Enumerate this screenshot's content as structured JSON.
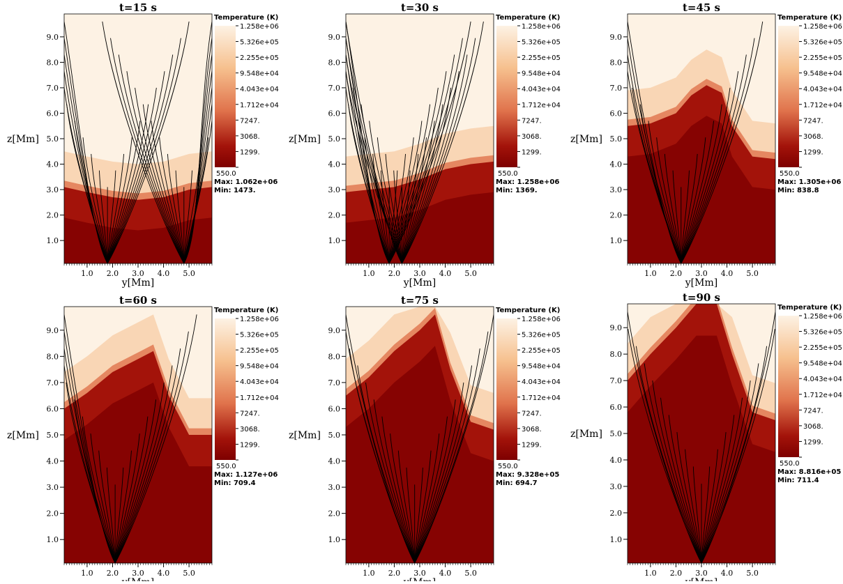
{
  "figure": {
    "colorbar_title": "Temperature (K)",
    "max_label": "Max:",
    "min_label": "Min:",
    "x_axis_label": "y[Mm]",
    "y_axis_label": "z[Mm]",
    "colorbar_ticks": [
      "1.258e+06",
      "5.326e+05",
      "2.255e+05",
      "9.548e+04",
      "4.043e+04",
      "1.712e+04",
      "7247.",
      "3068.",
      "1299.",
      "550.0"
    ],
    "colors": {
      "hot": "#fdf2e4",
      "warm": "#f6c08e",
      "mid": "#e0734c",
      "cool": "#a3130a",
      "cold": "#7e0000",
      "fieldline": "#000000"
    }
  },
  "chart_data": [
    {
      "type": "heatmap",
      "title": "t=15 s",
      "xlabel": "y[Mm]",
      "ylabel": "z[Mm]",
      "xlim": [
        0.1,
        5.9
      ],
      "ylim": [
        0.1,
        9.9
      ],
      "x_ticks": [
        "1.0",
        "2.0",
        "3.0",
        "4.0",
        "5.0"
      ],
      "y_ticks": [
        "1.0",
        "2.0",
        "3.0",
        "4.0",
        "5.0",
        "6.0",
        "7.0",
        "8.0",
        "9.0"
      ],
      "colorbar": {
        "label": "Temperature (K)",
        "scale": "log",
        "range": [
          550.0,
          1258000
        ],
        "max": "1.062e+06",
        "min": "1473."
      },
      "transition_region_height": [
        [
          0.1,
          3.1
        ],
        [
          1.0,
          2.9
        ],
        [
          2.0,
          2.7
        ],
        [
          3.0,
          2.6
        ],
        [
          4.0,
          2.7
        ],
        [
          5.0,
          3.0
        ],
        [
          5.9,
          3.1
        ]
      ],
      "field_line_footpoints_y": [
        1.8,
        4.8
      ]
    },
    {
      "type": "heatmap",
      "title": "t=30 s",
      "xlabel": "y[Mm]",
      "ylabel": "z[Mm]",
      "xlim": [
        0.1,
        5.9
      ],
      "ylim": [
        0.1,
        9.9
      ],
      "x_ticks": [
        "1.0",
        "2.0",
        "3.0",
        "4.0",
        "5.0"
      ],
      "y_ticks": [
        "1.0",
        "2.0",
        "3.0",
        "4.0",
        "5.0",
        "6.0",
        "7.0",
        "8.0",
        "9.0"
      ],
      "colorbar": {
        "label": "Temperature (K)",
        "scale": "log",
        "range": [
          550.0,
          1258000
        ],
        "max": "1.258e+06",
        "min": "1369."
      },
      "transition_region_height": [
        [
          0.1,
          2.9
        ],
        [
          1.0,
          3.0
        ],
        [
          2.0,
          3.1
        ],
        [
          3.0,
          3.4
        ],
        [
          4.0,
          3.8
        ],
        [
          5.0,
          4.0
        ],
        [
          5.9,
          4.1
        ]
      ],
      "field_line_footpoints_y": [
        1.8,
        2.3
      ]
    },
    {
      "type": "heatmap",
      "title": "t=45 s",
      "xlabel": "y[Mm]",
      "ylabel": "z[Mm]",
      "xlim": [
        0.1,
        5.9
      ],
      "ylim": [
        0.1,
        9.9
      ],
      "x_ticks": [
        "1.0",
        "2.0",
        "3.0",
        "4.0",
        "5.0"
      ],
      "y_ticks": [
        "1.0",
        "2.0",
        "3.0",
        "4.0",
        "5.0",
        "6.0",
        "7.0",
        "8.0",
        "9.0"
      ],
      "colorbar": {
        "label": "Temperature (K)",
        "scale": "log",
        "range": [
          550.0,
          1258000
        ],
        "max": "1.305e+06",
        "min": "838.8"
      },
      "transition_region_height": [
        [
          0.1,
          5.5
        ],
        [
          1.0,
          5.6
        ],
        [
          2.0,
          6.0
        ],
        [
          2.6,
          6.7
        ],
        [
          3.2,
          7.1
        ],
        [
          3.8,
          6.8
        ],
        [
          4.2,
          5.5
        ],
        [
          5.0,
          4.3
        ],
        [
          5.9,
          4.2
        ]
      ],
      "field_line_footpoints_y": [
        2.2
      ]
    },
    {
      "type": "heatmap",
      "title": "t=60 s",
      "xlabel": "y[Mm]",
      "ylabel": "z[Mm]",
      "xlim": [
        0.1,
        5.9
      ],
      "ylim": [
        0.1,
        9.9
      ],
      "x_ticks": [
        "1.0",
        "2.0",
        "3.0",
        "4.0",
        "5.0"
      ],
      "y_ticks": [
        "1.0",
        "2.0",
        "3.0",
        "4.0",
        "5.0",
        "6.0",
        "7.0",
        "8.0",
        "9.0"
      ],
      "colorbar": {
        "label": "Temperature (K)",
        "scale": "log",
        "range": [
          550.0,
          1258000
        ],
        "max": "1.127e+06",
        "min": "709.4"
      },
      "transition_region_height": [
        [
          0.1,
          6.0
        ],
        [
          1.0,
          6.6
        ],
        [
          2.0,
          7.4
        ],
        [
          3.0,
          7.9
        ],
        [
          3.6,
          8.2
        ],
        [
          4.2,
          6.5
        ],
        [
          5.0,
          5.0
        ],
        [
          5.9,
          5.0
        ]
      ],
      "field_line_footpoints_y": [
        2.1
      ]
    },
    {
      "type": "heatmap",
      "title": "t=75 s",
      "xlabel": "y[Mm]",
      "ylabel": "z[Mm]",
      "xlim": [
        0.1,
        5.9
      ],
      "ylim": [
        0.1,
        9.9
      ],
      "x_ticks": [
        "1.0",
        "2.0",
        "3.0",
        "4.0",
        "5.0"
      ],
      "y_ticks": [
        "1.0",
        "2.0",
        "3.0",
        "4.0",
        "5.0",
        "6.0",
        "7.0",
        "8.0",
        "9.0"
      ],
      "colorbar": {
        "label": "Temperature (K)",
        "scale": "log",
        "range": [
          550.0,
          1258000
        ],
        "max": "9.328e+05",
        "min": "694.7"
      },
      "transition_region_height": [
        [
          0.1,
          6.5
        ],
        [
          1.0,
          7.2
        ],
        [
          2.0,
          8.2
        ],
        [
          3.0,
          9.0
        ],
        [
          3.6,
          9.6
        ],
        [
          4.2,
          7.5
        ],
        [
          5.0,
          5.5
        ],
        [
          5.9,
          5.2
        ]
      ],
      "field_line_footpoints_y": [
        2.8
      ]
    },
    {
      "type": "heatmap",
      "title": "t=90 s",
      "xlabel": "y[Mm]",
      "ylabel": "z[Mm]",
      "xlim": [
        0.1,
        5.9
      ],
      "ylim": [
        0.1,
        9.9
      ],
      "x_ticks": [
        "1.0",
        "2.0",
        "3.0",
        "4.0",
        "5.0"
      ],
      "y_ticks": [
        "1.0",
        "2.0",
        "3.0",
        "4.0",
        "5.0",
        "6.0",
        "7.0",
        "8.0",
        "9.0"
      ],
      "colorbar": {
        "label": "Temperature (K)",
        "scale": "log",
        "range": [
          550.0,
          1258000
        ],
        "max": "8.816e+05",
        "min": "711.4"
      },
      "transition_region_height": [
        [
          0.1,
          7.0
        ],
        [
          1.0,
          8.0
        ],
        [
          2.0,
          9.0
        ],
        [
          2.8,
          9.9
        ],
        [
          3.6,
          9.9
        ],
        [
          4.2,
          8.0
        ],
        [
          5.0,
          5.8
        ],
        [
          5.9,
          5.5
        ]
      ],
      "field_line_footpoints_y": [
        3.0
      ]
    }
  ]
}
